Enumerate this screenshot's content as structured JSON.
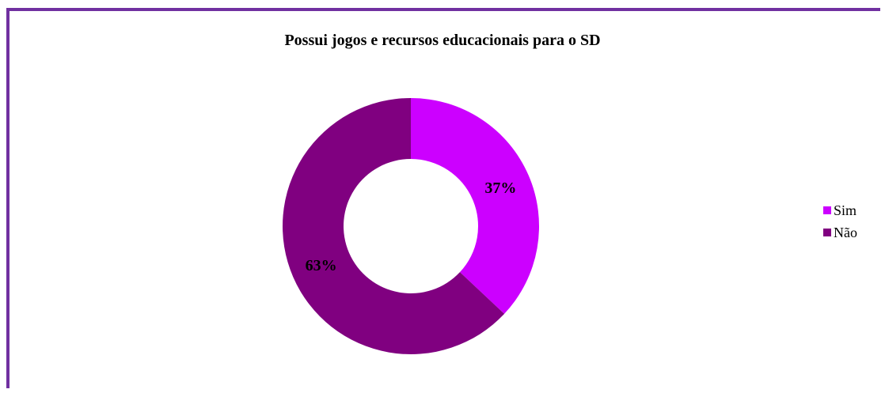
{
  "chart_data": {
    "type": "pie",
    "variant": "donut",
    "title": "Possui jogos e recursos educacionais para o SD",
    "categories": [
      "Sim",
      "Não"
    ],
    "values": [
      37,
      63
    ],
    "labels": [
      "37%",
      "63%"
    ],
    "colors": [
      "#cc00ff",
      "#800080"
    ],
    "legend_position": "right"
  },
  "frame_color": "#7030a0"
}
